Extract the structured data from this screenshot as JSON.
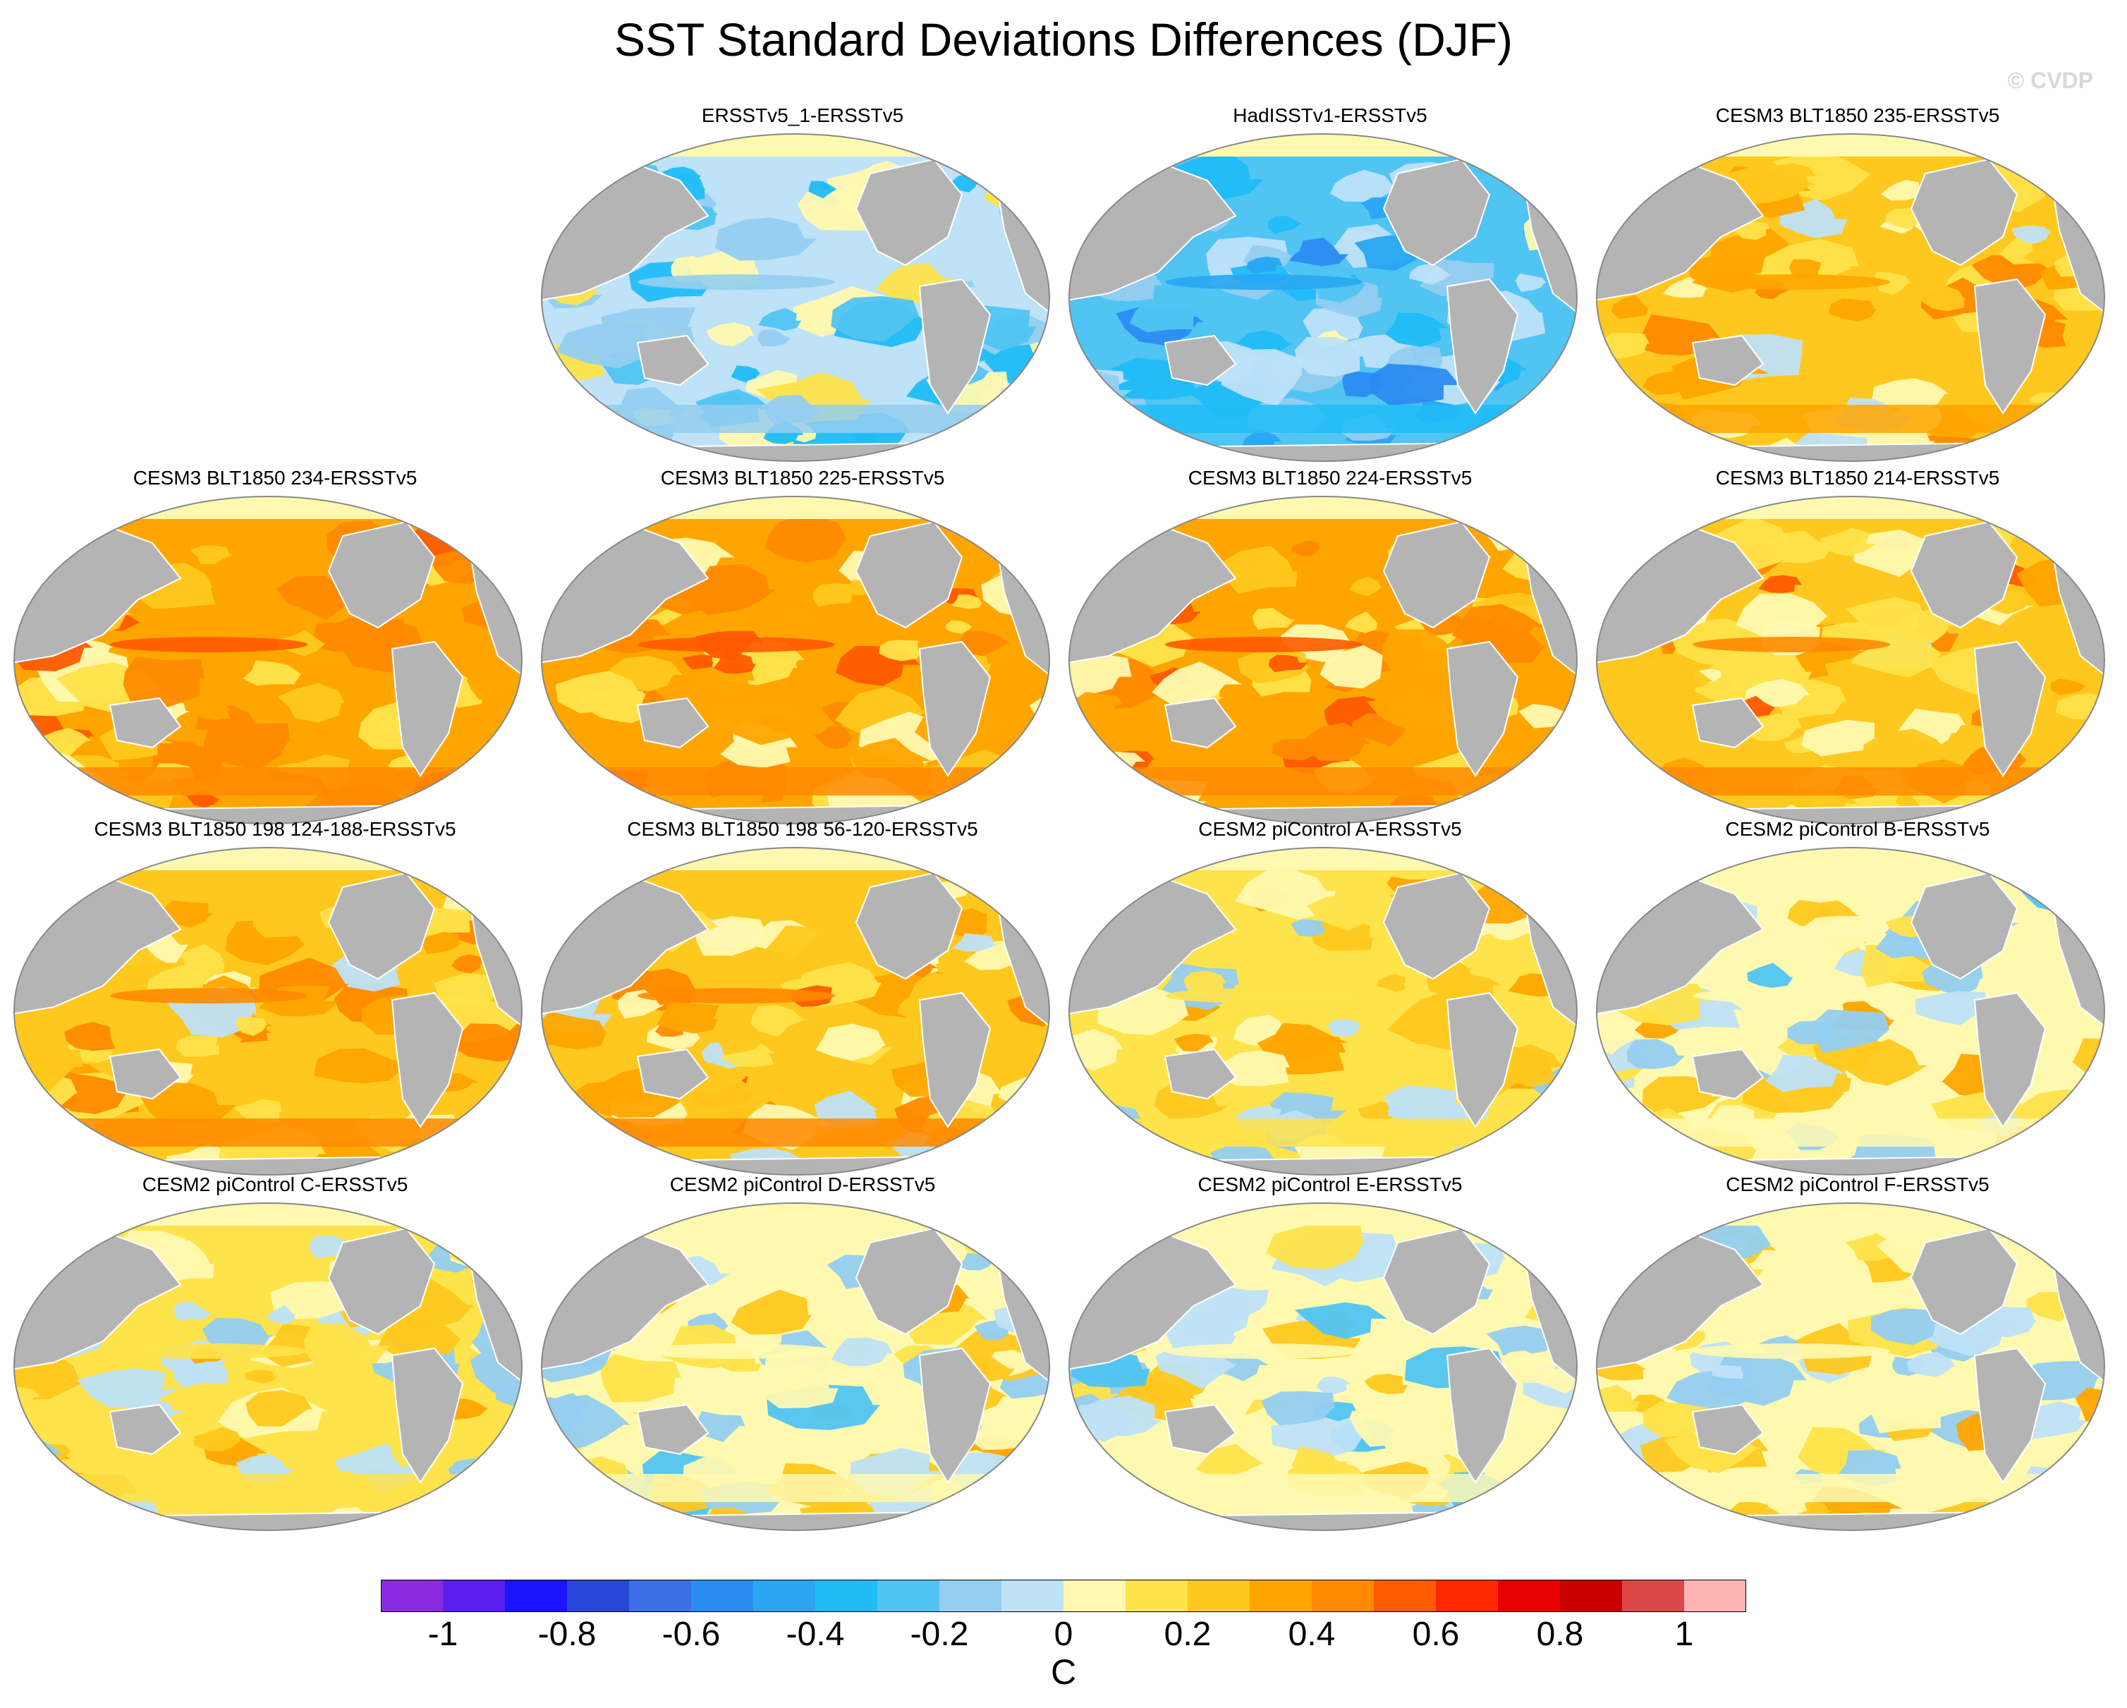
{
  "title": "SST Standard Deviations Differences (DJF)",
  "watermark": "© CVDP",
  "colors": {
    "land": "#b4b4b4",
    "ocean_border": "#888888",
    "coast": "#ffffff",
    "palette": [
      "#8a2be2",
      "#5a1ef0",
      "#1a14ff",
      "#2846d8",
      "#3c6ee6",
      "#2a8cf0",
      "#28a6f2",
      "#20bcf8",
      "#50c4f2",
      "#94cef0",
      "#bee2f8",
      "#fff9b0",
      "#ffe34a",
      "#ffc81e",
      "#ffa500",
      "#ff8a00",
      "#ff5a00",
      "#ff2a00",
      "#e60000",
      "#c80000",
      "#dc4646",
      "#ffb4b4"
    ]
  },
  "colorbar": {
    "ticks": [
      "-1",
      "-0.8",
      "-0.6",
      "-0.4",
      "-0.2",
      "0",
      "0.2",
      "0.4",
      "0.6",
      "0.8",
      "1"
    ],
    "units": "C"
  },
  "panels": [
    {
      "title": "ERSSTv5_1-ERSSTv5",
      "bias": -0.1
    },
    {
      "title": "HadISSTv1-ERSSTv5",
      "bias": -0.25
    },
    {
      "title": "CESM3 BLT1850 235-ERSSTv5",
      "bias": 0.2
    },
    {
      "title": "CESM3 BLT1850 234-ERSSTv5",
      "bias": 0.3
    },
    {
      "title": "CESM3 BLT1850 225-ERSSTv5",
      "bias": 0.3
    },
    {
      "title": "CESM3 BLT1850 224-ERSSTv5",
      "bias": 0.3
    },
    {
      "title": "CESM3 BLT1850 214-ERSSTv5",
      "bias": 0.25
    },
    {
      "title": "CESM3 BLT1850 198 124-188-ERSSTv5",
      "bias": 0.25
    },
    {
      "title": "CESM3 BLT1850 198 56-120-ERSSTv5",
      "bias": 0.25
    },
    {
      "title": "CESM2 piControl A-ERSSTv5",
      "bias": 0.1
    },
    {
      "title": "CESM2 piControl B-ERSSTv5",
      "bias": 0.05
    },
    {
      "title": "CESM2 piControl C-ERSSTv5",
      "bias": 0.1
    },
    {
      "title": "CESM2 piControl D-ERSSTv5",
      "bias": 0.05
    },
    {
      "title": "CESM2 piControl E-ERSSTv5",
      "bias": 0.0
    },
    {
      "title": "CESM2 piControl F-ERSSTv5",
      "bias": 0.05
    }
  ]
}
